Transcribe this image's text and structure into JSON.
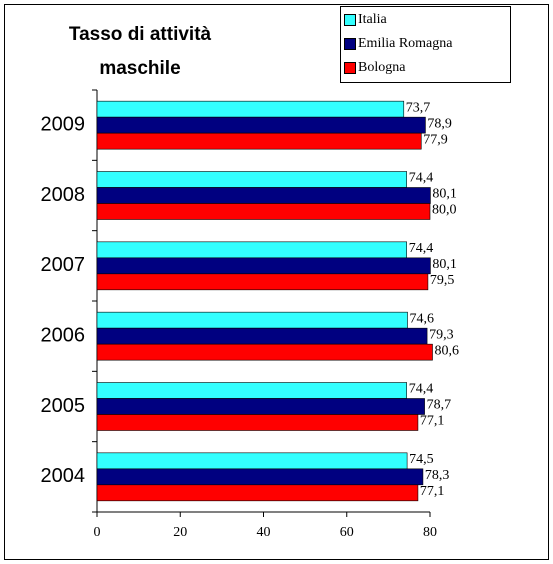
{
  "chart_data": {
    "type": "bar",
    "orientation": "horizontal",
    "title": "Tasso di attività maschile",
    "categories": [
      "2009",
      "2008",
      "2007",
      "2006",
      "2005",
      "2004"
    ],
    "series": [
      {
        "name": "Italia",
        "color": "#33ffff",
        "values": [
          73.7,
          74.4,
          74.4,
          74.6,
          74.4,
          74.5
        ],
        "value_labels": [
          "73,7",
          "74,4",
          "74,4",
          "74,6",
          "74,4",
          "74,5"
        ]
      },
      {
        "name": "Emilia Romagna",
        "color": "#000080",
        "values": [
          78.9,
          80.1,
          80.1,
          79.3,
          78.7,
          78.3
        ],
        "value_labels": [
          "78,9",
          "80,1",
          "80,1",
          "79,3",
          "78,7",
          "78,3"
        ]
      },
      {
        "name": "Bologna",
        "color": "#ff0000",
        "values": [
          77.9,
          80.0,
          79.5,
          80.6,
          77.1,
          77.1
        ],
        "value_labels": [
          "77,9",
          "80,0",
          "79,5",
          "80,6",
          "77,1",
          "77,1"
        ]
      }
    ],
    "xlim": [
      0,
      80
    ],
    "xticks": [
      0,
      20,
      40,
      60,
      80
    ],
    "legend": "upper right"
  }
}
